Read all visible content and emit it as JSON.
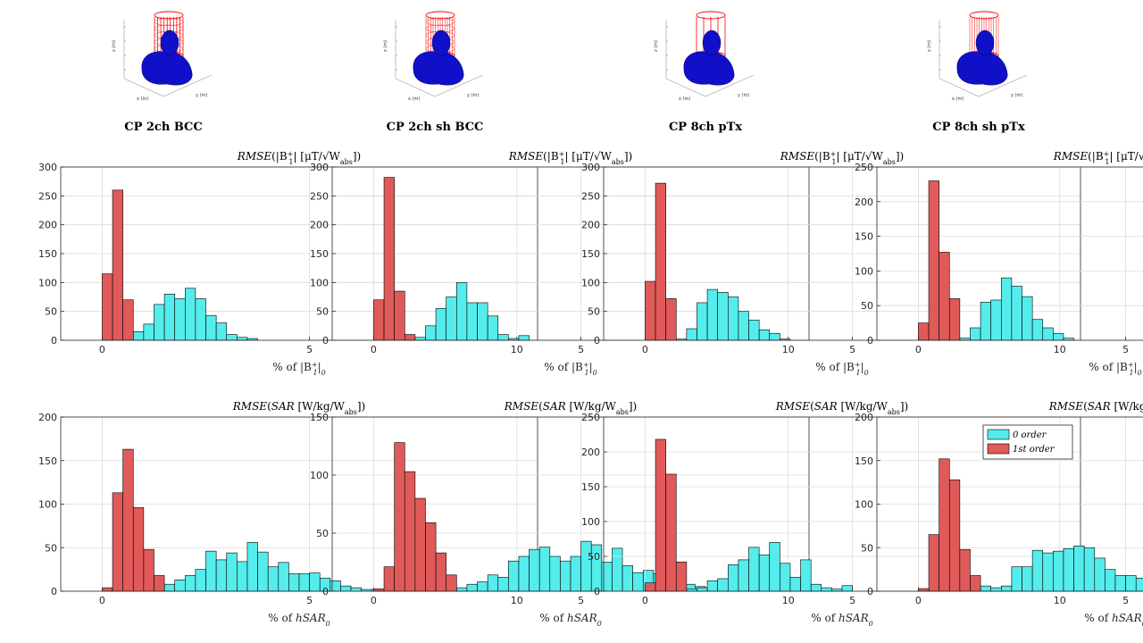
{
  "colors": {
    "zero_order": "#55ecec",
    "first_order": "#e05a5a",
    "coil": "#ff0000",
    "head": "#1010c8"
  },
  "legend": {
    "zero": "0 order",
    "first": "1st order"
  },
  "columns": [
    {
      "title": "CP 2ch BCC",
      "coil": "bcc2"
    },
    {
      "title": "CP 2ch sh BCC",
      "coil": "bcc2sh"
    },
    {
      "title": "CP 8ch pTx",
      "coil": "ptx8"
    },
    {
      "title": "CP 8ch sh pTx",
      "coil": "ptx8sh"
    }
  ],
  "mini_axes": {
    "x": "x (m)",
    "y": "y (m)",
    "z": "z (m)"
  },
  "row_titles": {
    "b1": {
      "prefix": "RMSE",
      "open": "(|B",
      "sup": "+",
      "sub": "1",
      "rest": "| [μT/√W",
      "abs": "abs",
      "close": "])"
    },
    "sar": {
      "prefix": "RMSE",
      "open": "(",
      "mid": "SAR",
      "rest": " [W/kg/W",
      "abs": "abs",
      "close": "])"
    }
  },
  "xlabels": {
    "b1": {
      "pre": "% of |B",
      "sup": "+",
      "sub": "1",
      "post": "|",
      "tail": "0"
    },
    "sar": {
      "pre": "% of ",
      "it": "hSAR",
      "tail": "0"
    }
  },
  "chart_data": [
    {
      "type": "bar",
      "row": "b1",
      "col": 0,
      "xlim": [
        -1,
        10.5
      ],
      "ylim": [
        0,
        300
      ],
      "yticks": [
        0,
        50,
        100,
        150,
        200,
        250,
        300
      ],
      "xticks": [
        0,
        5,
        10
      ],
      "bin_width": 0.25,
      "series": [
        {
          "name": "0 order",
          "x": [
            0.625,
            0.875,
            1.125,
            1.375,
            1.625,
            1.875,
            2.125,
            2.375,
            2.625,
            2.875,
            3.125,
            3.375,
            3.625
          ],
          "values": [
            3,
            15,
            28,
            62,
            80,
            72,
            90,
            72,
            43,
            30,
            10,
            5,
            3
          ]
        },
        {
          "name": "1st order",
          "x": [
            0.125,
            0.375,
            0.625
          ],
          "values": [
            115,
            260,
            70
          ]
        }
      ]
    },
    {
      "type": "bar",
      "row": "b1",
      "col": 1,
      "xlim": [
        -1,
        10.5
      ],
      "ylim": [
        0,
        300
      ],
      "yticks": [
        0,
        50,
        100,
        150,
        200,
        250,
        300
      ],
      "xticks": [
        0,
        5,
        10
      ],
      "bin_width": 0.25,
      "series": [
        {
          "name": "0 order",
          "x": [
            0.875,
            1.125,
            1.375,
            1.625,
            1.875,
            2.125,
            2.375,
            2.625,
            2.875,
            3.125,
            3.375,
            3.625
          ],
          "values": [
            3,
            5,
            25,
            55,
            75,
            100,
            65,
            65,
            42,
            10,
            3,
            8
          ]
        },
        {
          "name": "1st order",
          "x": [
            0.125,
            0.375,
            0.625,
            0.875
          ],
          "values": [
            70,
            282,
            85,
            10
          ]
        }
      ]
    },
    {
      "type": "bar",
      "row": "b1",
      "col": 2,
      "xlim": [
        -1,
        10.5
      ],
      "ylim": [
        0,
        300
      ],
      "yticks": [
        0,
        50,
        100,
        150,
        200,
        250,
        300
      ],
      "xticks": [
        0,
        5,
        10
      ],
      "bin_width": 0.25,
      "series": [
        {
          "name": "0 order",
          "x": [
            0.875,
            1.125,
            1.375,
            1.625,
            1.875,
            2.125,
            2.375,
            2.625,
            2.875,
            3.125,
            3.375
          ],
          "values": [
            2,
            20,
            65,
            88,
            83,
            75,
            50,
            35,
            18,
            12,
            2
          ]
        },
        {
          "name": "1st order",
          "x": [
            0.125,
            0.375,
            0.625
          ],
          "values": [
            102,
            272,
            72
          ]
        }
      ]
    },
    {
      "type": "bar",
      "row": "b1",
      "col": 3,
      "xlim": [
        -1,
        10.5
      ],
      "ylim": [
        0,
        250
      ],
      "yticks": [
        0,
        50,
        100,
        150,
        200,
        250
      ],
      "xticks": [
        0,
        5,
        10
      ],
      "bin_width": 0.25,
      "series": [
        {
          "name": "0 order",
          "x": [
            1.125,
            1.375,
            1.625,
            1.875,
            2.125,
            2.375,
            2.625,
            2.875,
            3.125,
            3.375,
            3.625
          ],
          "values": [
            3,
            18,
            55,
            58,
            90,
            78,
            63,
            30,
            18,
            10,
            3
          ]
        },
        {
          "name": "1st order",
          "x": [
            0.125,
            0.375,
            0.625,
            0.875
          ],
          "values": [
            25,
            230,
            127,
            60
          ]
        }
      ]
    },
    {
      "type": "bar",
      "row": "sar",
      "col": 0,
      "xlim": [
        -1,
        10.5
      ],
      "ylim": [
        0,
        200
      ],
      "yticks": [
        0,
        50,
        100,
        150,
        200
      ],
      "xticks": [
        0,
        5,
        10
      ],
      "bin_width": 0.25,
      "series": [
        {
          "name": "0 order",
          "x": [
            1.375,
            1.625,
            1.875,
            2.125,
            2.375,
            2.625,
            2.875,
            3.125,
            3.375,
            3.625,
            3.875,
            4.125,
            4.375,
            4.625,
            4.875,
            5.125,
            5.375,
            5.625,
            5.875,
            6.125,
            6.375,
            6.625
          ],
          "values": [
            3,
            8,
            13,
            18,
            25,
            46,
            36,
            44,
            34,
            56,
            45,
            28,
            33,
            20,
            20,
            21,
            15,
            12,
            6,
            4,
            2,
            2
          ]
        },
        {
          "name": "1st order",
          "x": [
            0.125,
            0.375,
            0.625,
            0.875,
            1.125,
            1.375
          ],
          "values": [
            4,
            113,
            163,
            96,
            48,
            18
          ]
        }
      ]
    },
    {
      "type": "bar",
      "row": "sar",
      "col": 1,
      "xlim": [
        -1,
        10.5
      ],
      "ylim": [
        0,
        150
      ],
      "yticks": [
        0,
        50,
        100,
        150
      ],
      "xticks": [
        0,
        5,
        10
      ],
      "bin_width": 0.25,
      "series": [
        {
          "name": "0 order",
          "x": [
            2.125,
            2.375,
            2.625,
            2.875,
            3.125,
            3.375,
            3.625,
            3.875,
            4.125,
            4.375,
            4.625,
            4.875,
            5.125,
            5.375,
            5.625,
            5.875,
            6.125,
            6.375,
            6.625,
            6.875,
            7.125,
            7.375,
            7.625,
            7.875,
            8.125,
            8.375,
            8.625,
            8.875,
            9.125,
            9.375,
            9.625,
            9.875
          ],
          "values": [
            3,
            6,
            8,
            14,
            12,
            26,
            30,
            36,
            38,
            30,
            26,
            30,
            43,
            40,
            25,
            37,
            22,
            16,
            18,
            15,
            15,
            12,
            6,
            4,
            3,
            2,
            2,
            1,
            2,
            1,
            2,
            1
          ]
        },
        {
          "name": "1st order",
          "x": [
            0.125,
            0.375,
            0.625,
            0.875,
            1.125,
            1.375,
            1.625,
            1.875
          ],
          "values": [
            2,
            21,
            128,
            103,
            80,
            59,
            33,
            14
          ]
        }
      ]
    },
    {
      "type": "bar",
      "row": "sar",
      "col": 2,
      "xlim": [
        -1,
        10.5
      ],
      "ylim": [
        0,
        250
      ],
      "yticks": [
        0,
        50,
        100,
        150,
        200,
        250
      ],
      "xticks": [
        0,
        5,
        10
      ],
      "bin_width": 0.25,
      "series": [
        {
          "name": "0 order",
          "x": [
            1.125,
            1.375,
            1.625,
            1.875,
            2.125,
            2.375,
            2.625,
            2.875,
            3.125,
            3.375,
            3.625,
            3.875,
            4.125,
            4.375,
            4.625,
            4.875
          ],
          "values": [
            3,
            5,
            15,
            18,
            38,
            45,
            63,
            52,
            70,
            40,
            20,
            45,
            10,
            5,
            3,
            8
          ]
        },
        {
          "name": "1st order",
          "x": [
            0.125,
            0.375,
            0.625,
            0.875
          ],
          "values": [
            12,
            218,
            168,
            42
          ]
        }
      ]
    },
    {
      "type": "bar",
      "row": "sar",
      "col": 3,
      "xlim": [
        -1,
        10.5
      ],
      "ylim": [
        0,
        200
      ],
      "yticks": [
        0,
        50,
        100,
        150,
        200
      ],
      "xticks": [
        0,
        5,
        10
      ],
      "bin_width": 0.25,
      "series": [
        {
          "name": "0 order",
          "x": [
            1.375,
            1.625,
            1.875,
            2.125,
            2.375,
            2.625,
            2.875,
            3.125,
            3.375,
            3.625,
            3.875,
            4.125,
            4.375,
            4.625,
            4.875,
            5.125,
            5.375,
            5.625,
            5.875,
            6.125
          ],
          "values": [
            3,
            6,
            4,
            6,
            28,
            28,
            47,
            44,
            46,
            49,
            52,
            50,
            38,
            25,
            18,
            18,
            15,
            9,
            4,
            8
          ]
        },
        {
          "name": "1st order",
          "x": [
            0.125,
            0.375,
            0.625,
            0.875,
            1.125,
            1.375
          ],
          "values": [
            3,
            65,
            152,
            128,
            48,
            18
          ]
        }
      ]
    }
  ]
}
